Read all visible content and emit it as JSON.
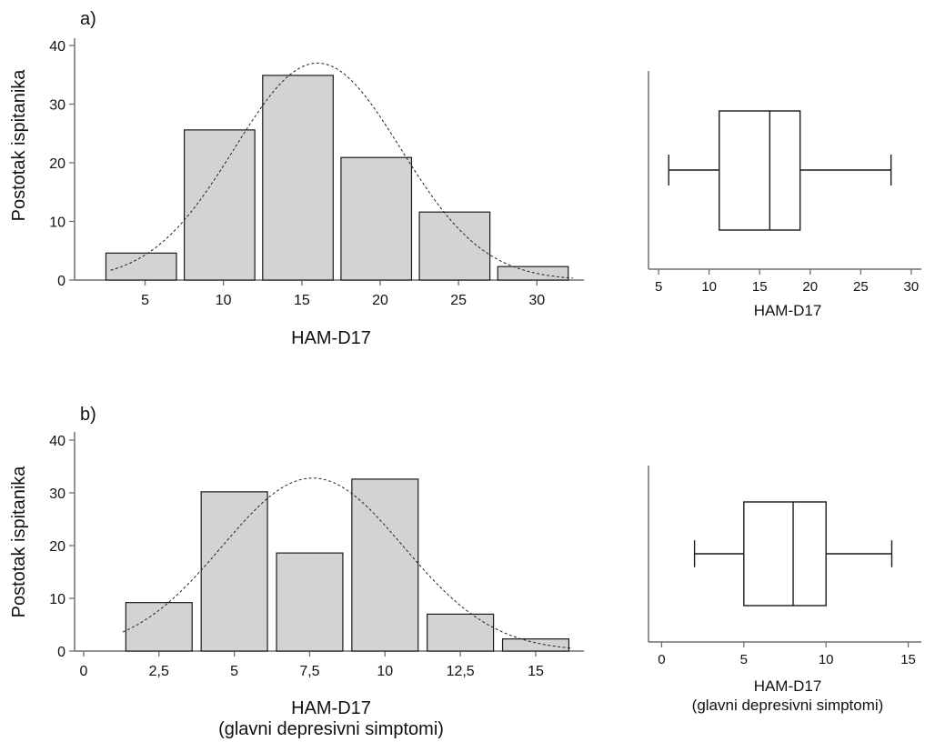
{
  "chart_data": [
    {
      "id": "a-hist",
      "type": "bar",
      "panel_label": "a)",
      "ylabel": "Postotak ispitanika",
      "xlabel": [
        "HAM-D17"
      ],
      "ylim": [
        0,
        40
      ],
      "yticks": [
        0,
        10,
        20,
        30,
        40
      ],
      "xlim": [
        0.5,
        33
      ],
      "xticks": [
        5,
        10,
        15,
        20,
        25,
        30
      ],
      "xtick_labels": [
        "5",
        "10",
        "15",
        "20",
        "25",
        "30"
      ],
      "bins": [
        {
          "from": 2.5,
          "to": 7.0,
          "value": 4.6
        },
        {
          "from": 7.5,
          "to": 12.0,
          "value": 25.6
        },
        {
          "from": 12.5,
          "to": 17.0,
          "value": 34.9
        },
        {
          "from": 17.5,
          "to": 22.0,
          "value": 20.9
        },
        {
          "from": 22.5,
          "to": 27.0,
          "value": 11.6
        },
        {
          "from": 27.5,
          "to": 32.0,
          "value": 2.3
        }
      ],
      "normal_curve": {
        "mean": 16.0,
        "sd": 5.3,
        "peak": 37,
        "x_range": [
          2.8,
          32.3
        ]
      }
    },
    {
      "id": "a-box",
      "type": "boxplot",
      "xlabel": [
        "HAM-D17"
      ],
      "xlim": [
        4,
        31
      ],
      "xticks": [
        5,
        10,
        15,
        20,
        25,
        30
      ],
      "xtick_labels": [
        "5",
        "10",
        "15",
        "20",
        "25",
        "30"
      ],
      "box": {
        "min": 6,
        "q1": 11,
        "median": 16,
        "q3": 19,
        "max": 28
      }
    },
    {
      "id": "b-hist",
      "type": "bar",
      "panel_label": "b)",
      "ylabel": "Postotak ispitanika",
      "xlabel": [
        "HAM-D17",
        "(glavni depresivni simptomi)"
      ],
      "ylim": [
        0,
        40
      ],
      "yticks": [
        0,
        10,
        20,
        30,
        40
      ],
      "xlim": [
        -0.3,
        16.6
      ],
      "xticks": [
        0,
        2.5,
        5,
        7.5,
        10,
        12.5,
        15
      ],
      "xtick_labels": [
        "0",
        "2,5",
        "5",
        "7,5",
        "10",
        "12,5",
        "15"
      ],
      "bins": [
        {
          "from": 1.4,
          "to": 3.6,
          "value": 9.2
        },
        {
          "from": 3.9,
          "to": 6.1,
          "value": 30.2
        },
        {
          "from": 6.4,
          "to": 8.6,
          "value": 18.6
        },
        {
          "from": 8.9,
          "to": 11.1,
          "value": 32.6
        },
        {
          "from": 11.4,
          "to": 13.6,
          "value": 7.0
        },
        {
          "from": 13.9,
          "to": 16.1,
          "value": 2.3
        }
      ],
      "normal_curve": {
        "mean": 7.6,
        "sd": 3.0,
        "peak": 32.8,
        "x_range": [
          1.3,
          16.2
        ]
      }
    },
    {
      "id": "b-box",
      "type": "boxplot",
      "xlabel": [
        "HAM-D17",
        "(glavni depresivni simptomi)"
      ],
      "xlim": [
        -0.8,
        15.8
      ],
      "xticks": [
        0,
        5,
        10,
        15
      ],
      "xtick_labels": [
        "0",
        "5",
        "10",
        "15"
      ],
      "box": {
        "min": 2,
        "q1": 5,
        "median": 8,
        "q3": 10,
        "max": 14
      }
    }
  ]
}
